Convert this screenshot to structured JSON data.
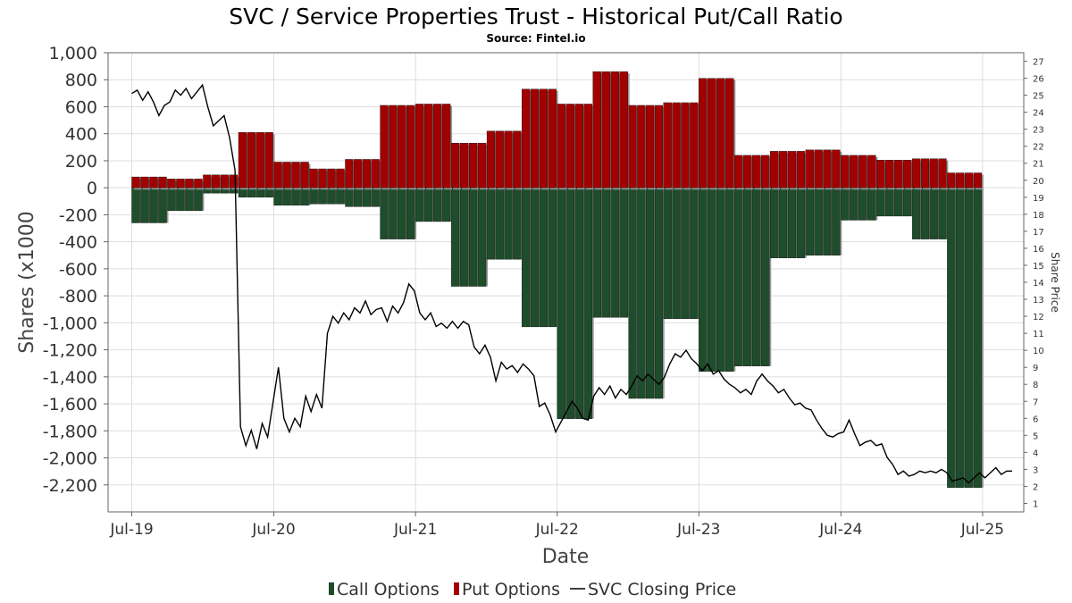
{
  "title": "SVC / Service Properties Trust - Historical Put/Call Ratio",
  "subtitle": "Source: Fintel.io",
  "chart_data": {
    "type": "bar",
    "xlabel": "Date",
    "ylabel": "Shares (x1000",
    "y2label": "Share Price",
    "ylim": [
      -2400,
      1000
    ],
    "y_ticks": [
      1000,
      800,
      600,
      400,
      200,
      0,
      -200,
      -400,
      -600,
      -800,
      -1000,
      -1200,
      -1400,
      -1600,
      -1800,
      -2000,
      -2200
    ],
    "y_tick_labels": [
      "1,000",
      "800",
      "600",
      "400",
      "200",
      "0",
      "-200",
      "-400",
      "-600",
      "-800",
      "-1,000",
      "-1,200",
      "-1,400",
      "-1,600",
      "-1,800",
      "-2,000",
      "-2,200"
    ],
    "y2lim": [
      0.5,
      27.5
    ],
    "y2_ticks": [
      1,
      2,
      3,
      4,
      5,
      6,
      7,
      8,
      9,
      10,
      11,
      12,
      13,
      14,
      15,
      16,
      17,
      18,
      19,
      20,
      21,
      22,
      23,
      24,
      25,
      26,
      27
    ],
    "x_ticks": [
      "2019-07",
      "2020-07",
      "2021-07",
      "2022-07",
      "2023-07",
      "2024-07",
      "2025-07"
    ],
    "x_tick_labels": [
      "Jul-19",
      "Jul-20",
      "Jul-21",
      "Jul-22",
      "Jul-23",
      "Jul-24",
      "Jul-25"
    ],
    "xlim": [
      "2019-05-01",
      "2025-10-15"
    ],
    "grid": true,
    "legend_position": "bottom",
    "series": [
      {
        "name": "Call Options",
        "color": "#1e4d2b",
        "segments": [
          {
            "start": "2019-07-01",
            "end": "2019-10-01",
            "value": -260
          },
          {
            "start": "2019-10-01",
            "end": "2020-01-01",
            "value": -170
          },
          {
            "start": "2020-01-01",
            "end": "2020-04-01",
            "value": -40
          },
          {
            "start": "2020-04-01",
            "end": "2020-07-01",
            "value": -70
          },
          {
            "start": "2020-07-01",
            "end": "2020-10-01",
            "value": -130
          },
          {
            "start": "2020-10-01",
            "end": "2021-01-01",
            "value": -120
          },
          {
            "start": "2021-01-01",
            "end": "2021-04-01",
            "value": -140
          },
          {
            "start": "2021-04-01",
            "end": "2021-07-01",
            "value": -380
          },
          {
            "start": "2021-07-01",
            "end": "2021-10-01",
            "value": -250
          },
          {
            "start": "2021-10-01",
            "end": "2022-01-01",
            "value": -730
          },
          {
            "start": "2022-01-01",
            "end": "2022-04-01",
            "value": -530
          },
          {
            "start": "2022-04-01",
            "end": "2022-07-01",
            "value": -1030
          },
          {
            "start": "2022-07-01",
            "end": "2022-10-01",
            "value": -1710
          },
          {
            "start": "2022-10-01",
            "end": "2023-01-01",
            "value": -960
          },
          {
            "start": "2023-01-01",
            "end": "2023-04-01",
            "value": -1560
          },
          {
            "start": "2023-04-01",
            "end": "2023-07-01",
            "value": -970
          },
          {
            "start": "2023-07-01",
            "end": "2023-10-01",
            "value": -1360
          },
          {
            "start": "2023-10-01",
            "end": "2024-01-01",
            "value": -1320
          },
          {
            "start": "2024-01-01",
            "end": "2024-04-01",
            "value": -520
          },
          {
            "start": "2024-04-01",
            "end": "2024-07-01",
            "value": -500
          },
          {
            "start": "2024-07-01",
            "end": "2024-10-01",
            "value": -240
          },
          {
            "start": "2024-10-01",
            "end": "2025-01-01",
            "value": -210
          },
          {
            "start": "2025-01-01",
            "end": "2025-04-01",
            "value": -380
          },
          {
            "start": "2025-04-01",
            "end": "2025-07-01",
            "value": -2220
          }
        ]
      },
      {
        "name": "Put Options",
        "color": "#a30000",
        "segments": [
          {
            "start": "2019-07-01",
            "end": "2019-10-01",
            "value": 80
          },
          {
            "start": "2019-10-01",
            "end": "2020-01-01",
            "value": 65
          },
          {
            "start": "2020-01-01",
            "end": "2020-04-01",
            "value": 95
          },
          {
            "start": "2020-04-01",
            "end": "2020-07-01",
            "value": 410
          },
          {
            "start": "2020-07-01",
            "end": "2020-10-01",
            "value": 190
          },
          {
            "start": "2020-10-01",
            "end": "2021-01-01",
            "value": 140
          },
          {
            "start": "2021-01-01",
            "end": "2021-04-01",
            "value": 210
          },
          {
            "start": "2021-04-01",
            "end": "2021-07-01",
            "value": 610
          },
          {
            "start": "2021-07-01",
            "end": "2021-10-01",
            "value": 620
          },
          {
            "start": "2021-10-01",
            "end": "2022-01-01",
            "value": 330
          },
          {
            "start": "2022-01-01",
            "end": "2022-04-01",
            "value": 420
          },
          {
            "start": "2022-04-01",
            "end": "2022-07-01",
            "value": 730
          },
          {
            "start": "2022-07-01",
            "end": "2022-10-01",
            "value": 620
          },
          {
            "start": "2022-10-01",
            "end": "2023-01-01",
            "value": 860
          },
          {
            "start": "2023-01-01",
            "end": "2023-04-01",
            "value": 610
          },
          {
            "start": "2023-04-01",
            "end": "2023-07-01",
            "value": 630
          },
          {
            "start": "2023-07-01",
            "end": "2023-10-01",
            "value": 810
          },
          {
            "start": "2023-10-01",
            "end": "2024-01-01",
            "value": 240
          },
          {
            "start": "2024-01-01",
            "end": "2024-04-01",
            "value": 270
          },
          {
            "start": "2024-04-01",
            "end": "2024-07-01",
            "value": 280
          },
          {
            "start": "2024-07-01",
            "end": "2024-10-01",
            "value": 240
          },
          {
            "start": "2024-10-01",
            "end": "2025-01-01",
            "value": 205
          },
          {
            "start": "2025-01-01",
            "end": "2025-04-01",
            "value": 215
          },
          {
            "start": "2025-04-01",
            "end": "2025-07-01",
            "value": 110
          }
        ]
      },
      {
        "name": "SVC Closing Price",
        "color": "#000000",
        "axis": "right",
        "points": [
          [
            "2019-07-01",
            25.1
          ],
          [
            "2019-07-15",
            25.3
          ],
          [
            "2019-07-29",
            24.7
          ],
          [
            "2019-08-12",
            25.2
          ],
          [
            "2019-08-26",
            24.6
          ],
          [
            "2019-09-09",
            23.8
          ],
          [
            "2019-09-23",
            24.4
          ],
          [
            "2019-10-07",
            24.6
          ],
          [
            "2019-10-21",
            25.3
          ],
          [
            "2019-11-04",
            25.0
          ],
          [
            "2019-11-18",
            25.4
          ],
          [
            "2019-12-02",
            24.8
          ],
          [
            "2019-12-16",
            25.2
          ],
          [
            "2019-12-30",
            25.6
          ],
          [
            "2020-01-13",
            24.3
          ],
          [
            "2020-01-27",
            23.2
          ],
          [
            "2020-02-10",
            23.5
          ],
          [
            "2020-02-24",
            23.8
          ],
          [
            "2020-03-09",
            22.5
          ],
          [
            "2020-03-23",
            20.6
          ],
          [
            "2020-04-06",
            5.5
          ],
          [
            "2020-04-20",
            4.4
          ],
          [
            "2020-05-04",
            5.3
          ],
          [
            "2020-05-18",
            4.2
          ],
          [
            "2020-06-01",
            5.7
          ],
          [
            "2020-06-15",
            4.9
          ],
          [
            "2020-07-13",
            9.0
          ],
          [
            "2020-07-27",
            6.0
          ],
          [
            "2020-08-10",
            5.2
          ],
          [
            "2020-08-24",
            6.0
          ],
          [
            "2020-09-07",
            5.5
          ],
          [
            "2020-09-21",
            7.3
          ],
          [
            "2020-10-05",
            6.4
          ],
          [
            "2020-10-19",
            7.4
          ],
          [
            "2020-11-02",
            6.6
          ],
          [
            "2020-11-16",
            11.0
          ],
          [
            "2020-11-30",
            12.0
          ],
          [
            "2020-12-14",
            11.6
          ],
          [
            "2020-12-28",
            12.2
          ],
          [
            "2021-01-11",
            11.8
          ],
          [
            "2021-01-25",
            12.5
          ],
          [
            "2021-02-08",
            12.2
          ],
          [
            "2021-02-22",
            12.9
          ],
          [
            "2021-03-08",
            12.1
          ],
          [
            "2021-03-22",
            12.4
          ],
          [
            "2021-04-05",
            12.5
          ],
          [
            "2021-04-19",
            11.7
          ],
          [
            "2021-05-03",
            12.6
          ],
          [
            "2021-05-17",
            12.2
          ],
          [
            "2021-05-31",
            12.8
          ],
          [
            "2021-06-14",
            13.9
          ],
          [
            "2021-06-28",
            13.5
          ],
          [
            "2021-07-12",
            12.2
          ],
          [
            "2021-07-26",
            11.8
          ],
          [
            "2021-08-09",
            12.2
          ],
          [
            "2021-08-23",
            11.4
          ],
          [
            "2021-09-06",
            11.6
          ],
          [
            "2021-09-20",
            11.3
          ],
          [
            "2021-10-04",
            11.7
          ],
          [
            "2021-10-18",
            11.3
          ],
          [
            "2021-11-01",
            11.7
          ],
          [
            "2021-11-15",
            11.5
          ],
          [
            "2021-11-29",
            10.2
          ],
          [
            "2021-12-13",
            9.8
          ],
          [
            "2021-12-27",
            10.3
          ],
          [
            "2022-01-10",
            9.6
          ],
          [
            "2022-01-24",
            8.2
          ],
          [
            "2022-02-07",
            9.3
          ],
          [
            "2022-02-21",
            8.9
          ],
          [
            "2022-03-07",
            9.1
          ],
          [
            "2022-03-21",
            8.7
          ],
          [
            "2022-04-04",
            9.2
          ],
          [
            "2022-04-18",
            8.9
          ],
          [
            "2022-05-02",
            8.5
          ],
          [
            "2022-05-16",
            6.7
          ],
          [
            "2022-05-30",
            6.9
          ],
          [
            "2022-06-13",
            6.2
          ],
          [
            "2022-06-27",
            5.2
          ],
          [
            "2022-07-11",
            5.8
          ],
          [
            "2022-07-25",
            6.4
          ],
          [
            "2022-08-08",
            7.0
          ],
          [
            "2022-08-22",
            6.6
          ],
          [
            "2022-09-05",
            6.0
          ],
          [
            "2022-09-19",
            5.9
          ],
          [
            "2022-10-03",
            7.3
          ],
          [
            "2022-10-17",
            7.8
          ],
          [
            "2022-10-31",
            7.4
          ],
          [
            "2022-11-14",
            7.9
          ],
          [
            "2022-11-28",
            7.2
          ],
          [
            "2022-12-12",
            7.7
          ],
          [
            "2022-12-26",
            7.4
          ],
          [
            "2023-01-09",
            7.9
          ],
          [
            "2023-01-23",
            8.5
          ],
          [
            "2023-02-06",
            8.2
          ],
          [
            "2023-02-20",
            8.6
          ],
          [
            "2023-03-06",
            8.3
          ],
          [
            "2023-03-20",
            8.0
          ],
          [
            "2023-04-03",
            8.4
          ],
          [
            "2023-04-17",
            9.2
          ],
          [
            "2023-05-01",
            9.8
          ],
          [
            "2023-05-15",
            9.6
          ],
          [
            "2023-05-29",
            10.0
          ],
          [
            "2023-06-12",
            9.5
          ],
          [
            "2023-06-26",
            9.2
          ],
          [
            "2023-07-10",
            8.8
          ],
          [
            "2023-07-24",
            9.2
          ],
          [
            "2023-08-07",
            8.6
          ],
          [
            "2023-08-21",
            8.8
          ],
          [
            "2023-09-04",
            8.3
          ],
          [
            "2023-09-18",
            8.0
          ],
          [
            "2023-10-02",
            7.8
          ],
          [
            "2023-10-16",
            7.5
          ],
          [
            "2023-10-30",
            7.7
          ],
          [
            "2023-11-13",
            7.4
          ],
          [
            "2023-11-27",
            8.2
          ],
          [
            "2023-12-11",
            8.6
          ],
          [
            "2023-12-25",
            8.2
          ],
          [
            "2024-01-08",
            7.9
          ],
          [
            "2024-01-22",
            7.5
          ],
          [
            "2024-02-05",
            7.7
          ],
          [
            "2024-02-19",
            7.2
          ],
          [
            "2024-03-04",
            6.8
          ],
          [
            "2024-03-18",
            6.9
          ],
          [
            "2024-04-01",
            6.6
          ],
          [
            "2024-04-15",
            6.5
          ],
          [
            "2024-04-29",
            5.9
          ],
          [
            "2024-05-13",
            5.4
          ],
          [
            "2024-05-27",
            5.0
          ],
          [
            "2024-06-10",
            4.9
          ],
          [
            "2024-06-24",
            5.1
          ],
          [
            "2024-07-08",
            5.2
          ],
          [
            "2024-07-22",
            5.9
          ],
          [
            "2024-08-05",
            5.1
          ],
          [
            "2024-08-19",
            4.4
          ],
          [
            "2024-09-02",
            4.6
          ],
          [
            "2024-09-16",
            4.7
          ],
          [
            "2024-09-30",
            4.4
          ],
          [
            "2024-10-14",
            4.5
          ],
          [
            "2024-10-28",
            3.7
          ],
          [
            "2024-11-11",
            3.3
          ],
          [
            "2024-11-25",
            2.7
          ],
          [
            "2024-12-09",
            2.9
          ],
          [
            "2024-12-23",
            2.6
          ],
          [
            "2025-01-06",
            2.7
          ],
          [
            "2025-01-20",
            2.9
          ],
          [
            "2025-02-03",
            2.8
          ],
          [
            "2025-02-17",
            2.9
          ],
          [
            "2025-03-03",
            2.8
          ],
          [
            "2025-03-17",
            3.0
          ],
          [
            "2025-03-31",
            2.8
          ],
          [
            "2025-04-14",
            2.3
          ],
          [
            "2025-04-28",
            2.4
          ],
          [
            "2025-05-12",
            2.5
          ],
          [
            "2025-05-26",
            2.2
          ],
          [
            "2025-06-09",
            2.5
          ],
          [
            "2025-06-23",
            2.8
          ],
          [
            "2025-07-07",
            2.5
          ],
          [
            "2025-07-21",
            2.8
          ],
          [
            "2025-08-04",
            3.1
          ],
          [
            "2025-08-18",
            2.7
          ],
          [
            "2025-09-01",
            2.9
          ],
          [
            "2025-09-15",
            2.9
          ]
        ]
      }
    ]
  }
}
